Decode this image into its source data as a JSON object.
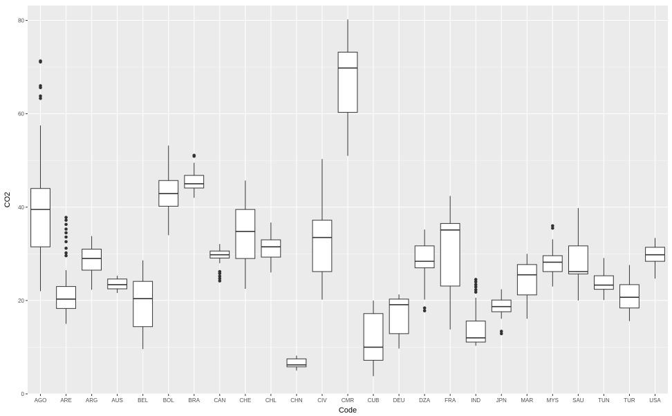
{
  "chart_data": {
    "type": "boxplot",
    "xlabel": "Code",
    "ylabel": "CO2",
    "ylim": [
      0,
      82
    ],
    "yticks": [
      0,
      20,
      40,
      60,
      80
    ],
    "grid": true,
    "legend": "none",
    "colors": {
      "panel": "#ebebeb",
      "grid_major": "#ffffff",
      "box_fill": "#ffffff",
      "box_line": "#333333",
      "outlier": "#333333"
    },
    "categories": [
      "AGO",
      "ARE",
      "ARG",
      "AUS",
      "BEL",
      "BOL",
      "BRA",
      "CAN",
      "CHE",
      "CHL",
      "CHN",
      "CIV",
      "CMR",
      "CUB",
      "DEU",
      "DZA",
      "FRA",
      "IND",
      "JPN",
      "MAR",
      "MYS",
      "SAU",
      "TUN",
      "TUR",
      "USA"
    ],
    "boxes": [
      {
        "code": "AGO",
        "lower": 22,
        "q1": 31.5,
        "median": 39.5,
        "q3": 44,
        "upper": 57.5,
        "outliers": [
          63.3,
          63.8,
          65.6,
          66,
          71.1,
          71.3
        ]
      },
      {
        "code": "ARE",
        "lower": 15,
        "q1": 18.3,
        "median": 20.3,
        "q3": 23,
        "upper": 26.5,
        "outliers": [
          29.6,
          30.2,
          31.2,
          32.6,
          33.6,
          34.5,
          35.3,
          36.3,
          37.2,
          37.8
        ]
      },
      {
        "code": "ARG",
        "lower": 22.3,
        "q1": 26.5,
        "median": 29,
        "q3": 31,
        "upper": 33.8,
        "outliers": []
      },
      {
        "code": "AUS",
        "lower": 21.6,
        "q1": 22.5,
        "median": 23.4,
        "q3": 24.6,
        "upper": 25.3,
        "outliers": []
      },
      {
        "code": "BEL",
        "lower": 9.6,
        "q1": 14.4,
        "median": 20.4,
        "q3": 24.1,
        "upper": 28.6,
        "outliers": []
      },
      {
        "code": "BOL",
        "lower": 34,
        "q1": 40.2,
        "median": 42.9,
        "q3": 45.7,
        "upper": 53.2,
        "outliers": []
      },
      {
        "code": "BRA",
        "lower": 42,
        "q1": 44.1,
        "median": 45,
        "q3": 46.8,
        "upper": 49.5,
        "outliers": [
          50.9,
          51.1
        ]
      },
      {
        "code": "CAN",
        "lower": 28,
        "q1": 29.1,
        "median": 29.8,
        "q3": 30.6,
        "upper": 32.1,
        "outliers": [
          24.2,
          24.7,
          25.2,
          25.8,
          26.2
        ]
      },
      {
        "code": "CHE",
        "lower": 22.5,
        "q1": 29,
        "median": 34.8,
        "q3": 39.5,
        "upper": 45.7,
        "outliers": []
      },
      {
        "code": "CHL",
        "lower": 26,
        "q1": 29.3,
        "median": 31.5,
        "q3": 33,
        "upper": 36.7,
        "outliers": []
      },
      {
        "code": "CHN",
        "lower": 5,
        "q1": 5.8,
        "median": 6.2,
        "q3": 7.5,
        "upper": 8.2,
        "outliers": []
      },
      {
        "code": "CIV",
        "lower": 20.2,
        "q1": 26.2,
        "median": 33.5,
        "q3": 37.2,
        "upper": 50.3,
        "outliers": []
      },
      {
        "code": "CMR",
        "lower": 51,
        "q1": 60.3,
        "median": 69.8,
        "q3": 73.2,
        "upper": 80.2,
        "outliers": []
      },
      {
        "code": "CUB",
        "lower": 3.8,
        "q1": 7.2,
        "median": 10,
        "q3": 17.2,
        "upper": 20,
        "outliers": []
      },
      {
        "code": "DEU",
        "lower": 9.7,
        "q1": 12.9,
        "median": 19.1,
        "q3": 20.3,
        "upper": 21.3,
        "outliers": []
      },
      {
        "code": "DZA",
        "lower": 20.2,
        "q1": 27,
        "median": 28.4,
        "q3": 31.7,
        "upper": 35.2,
        "outliers": [
          17.8,
          18.4
        ]
      },
      {
        "code": "FRA",
        "lower": 13.8,
        "q1": 23.1,
        "median": 35.1,
        "q3": 36.5,
        "upper": 42.4,
        "outliers": []
      },
      {
        "code": "IND",
        "lower": 10.3,
        "q1": 11.1,
        "median": 12,
        "q3": 15.6,
        "upper": 20.6,
        "outliers": [
          21.8,
          22.3,
          22.9,
          23.4,
          24,
          24.5
        ]
      },
      {
        "code": "JPN",
        "lower": 16.1,
        "q1": 17.6,
        "median": 18.7,
        "q3": 20.1,
        "upper": 22.4,
        "outliers": [
          12.9,
          13.4
        ]
      },
      {
        "code": "MAR",
        "lower": 16.1,
        "q1": 21.2,
        "median": 25.5,
        "q3": 27.7,
        "upper": 30,
        "outliers": []
      },
      {
        "code": "MYS",
        "lower": 23,
        "q1": 26.2,
        "median": 28.2,
        "q3": 29.6,
        "upper": 33.1,
        "outliers": [
          35.5,
          36
        ]
      },
      {
        "code": "SAU",
        "lower": 20,
        "q1": 25.7,
        "median": 26.2,
        "q3": 31.7,
        "upper": 39.8,
        "outliers": []
      },
      {
        "code": "TUN",
        "lower": 20.1,
        "q1": 22.4,
        "median": 23.3,
        "q3": 25.3,
        "upper": 29.1,
        "outliers": []
      },
      {
        "code": "TUR",
        "lower": 15.6,
        "q1": 18.4,
        "median": 20.7,
        "q3": 23.4,
        "upper": 27.6,
        "outliers": []
      },
      {
        "code": "USA",
        "lower": 24.7,
        "q1": 28.4,
        "median": 29.8,
        "q3": 31.4,
        "upper": 33.4,
        "outliers": []
      }
    ]
  }
}
